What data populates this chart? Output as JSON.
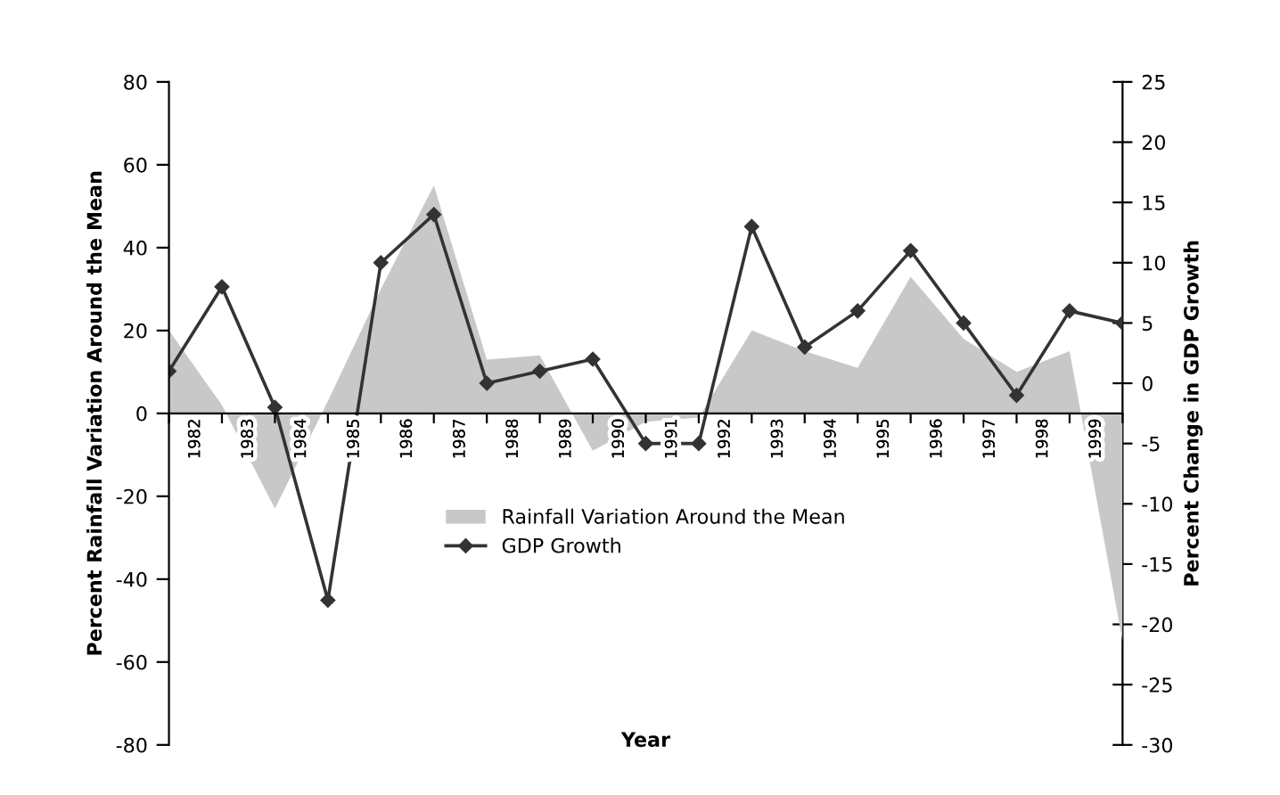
{
  "chart_data": {
    "type": "line",
    "xlabel": "Year",
    "ylabel": "Percent Rainfall Variation Around the Mean",
    "y2label": "Percent Change in GDP Growth",
    "x": [
      1982,
      1983,
      1984,
      1985,
      1986,
      1987,
      1988,
      1989,
      1990,
      1991,
      1992,
      1993,
      1994,
      1995,
      1996,
      1997,
      1998,
      1999,
      2000
    ],
    "series": [
      {
        "name": "Rainfall Variation Around the Mean",
        "type": "area",
        "color": "#c8c8c8",
        "values": [
          20,
          2,
          -23,
          3,
          30,
          55,
          13,
          14,
          -9,
          -2,
          -1,
          20,
          15,
          11,
          33,
          18,
          10,
          15,
          -55
        ]
      },
      {
        "name": "GDP Growth",
        "axis": "y2",
        "color": "#333333",
        "marker": "diamond",
        "values": [
          1,
          8,
          -2,
          -18,
          10,
          14,
          0,
          1,
          2,
          -5,
          -5,
          13,
          3,
          6,
          11,
          5,
          -1,
          6,
          5
        ]
      }
    ],
    "xlim": [
      1982,
      2000
    ],
    "xticks": [
      {
        "value": 1982,
        "label": null
      },
      {
        "value": 1982.5,
        "label": "1982"
      },
      {
        "value": 1983,
        "label": null
      },
      {
        "value": 1983.5,
        "label": "1983"
      },
      {
        "value": 1984,
        "label": null
      },
      {
        "value": 1984.5,
        "label": "1984"
      },
      {
        "value": 1985,
        "label": null
      },
      {
        "value": 1985.5,
        "label": "1985"
      },
      {
        "value": 1986,
        "label": null
      },
      {
        "value": 1986.5,
        "label": "1986"
      },
      {
        "value": 1987,
        "label": null
      },
      {
        "value": 1987.5,
        "label": "1987"
      },
      {
        "value": 1988,
        "label": null
      },
      {
        "value": 1988.5,
        "label": "1988"
      },
      {
        "value": 1989,
        "label": null
      },
      {
        "value": 1989.5,
        "label": "1989"
      },
      {
        "value": 1990,
        "label": null
      },
      {
        "value": 1990.5,
        "label": "1990"
      },
      {
        "value": 1991,
        "label": null
      },
      {
        "value": 1991.5,
        "label": "1991"
      },
      {
        "value": 1992,
        "label": null
      },
      {
        "value": 1992.5,
        "label": "1992"
      },
      {
        "value": 1993,
        "label": null
      },
      {
        "value": 1993.5,
        "label": "1993"
      },
      {
        "value": 1994,
        "label": null
      },
      {
        "value": 1994.5,
        "label": "1994"
      },
      {
        "value": 1995,
        "label": null
      },
      {
        "value": 1995.5,
        "label": "1995"
      },
      {
        "value": 1996,
        "label": null
      },
      {
        "value": 1996.5,
        "label": "1996"
      },
      {
        "value": 1997,
        "label": null
      },
      {
        "value": 1997.5,
        "label": "1997"
      },
      {
        "value": 1998,
        "label": null
      },
      {
        "value": 1998.5,
        "label": "1998"
      },
      {
        "value": 1999,
        "label": null
      },
      {
        "value": 1999.5,
        "label": "1999"
      },
      {
        "value": 2000,
        "label": null
      }
    ],
    "ylim": [
      -80,
      80
    ],
    "yticks": [
      -80,
      -60,
      -40,
      -20,
      0,
      20,
      40,
      60,
      80
    ],
    "y2lim": [
      -30,
      25
    ],
    "y2ticks": [
      -30,
      -25,
      -20,
      -15,
      -10,
      -5,
      0,
      5,
      10,
      15,
      20,
      25
    ],
    "legend": "center",
    "grid": false
  }
}
